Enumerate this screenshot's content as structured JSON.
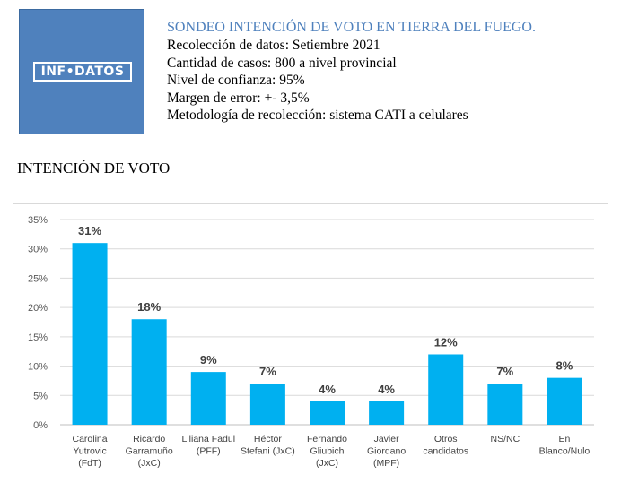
{
  "header": {
    "logo_text": "INF•DATOS",
    "title": "SONDEO INTENCIÓN DE VOTO EN TIERRA DEL FUEGO.",
    "lines": [
      "Recolección de datos: Setiembre 2021",
      "Cantidad de casos: 800 a nivel provincial",
      "Nivel de confianza: 95%",
      "Margen de error: +- 3,5%",
      "Metodología de recolección: sistema CATI a celulares"
    ]
  },
  "section_title": "INTENCIÓN DE VOTO",
  "colors": {
    "bar": "#00b0f0",
    "title": "#4f81bd",
    "logo_bg": "#4f81bd"
  },
  "chart_data": {
    "type": "bar",
    "categories": [
      "Carolina Yutrovic (FdT)",
      "Ricardo Garramuño (JxC)",
      "Liliana Fadul (PFF)",
      "Héctor Stefani (JxC)",
      "Fernando Gliubich (JxC)",
      "Javier Giordano (MPF)",
      "Otros candidatos",
      "NS/NC",
      "En Blanco/Nulo"
    ],
    "category_lines": [
      [
        "Carolina",
        "Yutrovic",
        "(FdT)"
      ],
      [
        "Ricardo",
        "Garramuño",
        "(JxC)"
      ],
      [
        "Liliana Fadul",
        "(PFF)"
      ],
      [
        "Héctor",
        "Stefani (JxC)"
      ],
      [
        "Fernando",
        "Gliubich",
        "(JxC)"
      ],
      [
        "Javier",
        "Giordano",
        "(MPF)"
      ],
      [
        "Otros",
        "candidatos"
      ],
      [
        "NS/NC"
      ],
      [
        "En",
        "Blanco/Nulo"
      ]
    ],
    "values": [
      31,
      18,
      9,
      7,
      4,
      4,
      12,
      7,
      8
    ],
    "value_labels": [
      "31%",
      "18%",
      "9%",
      "7%",
      "4%",
      "4%",
      "12%",
      "7%",
      "8%"
    ],
    "y_ticks": [
      0,
      5,
      10,
      15,
      20,
      25,
      30,
      35
    ],
    "y_tick_labels": [
      "0%",
      "5%",
      "10%",
      "15%",
      "20%",
      "25%",
      "30%",
      "35%"
    ],
    "ylim": [
      0,
      35
    ],
    "grid": true,
    "legend": "none"
  }
}
